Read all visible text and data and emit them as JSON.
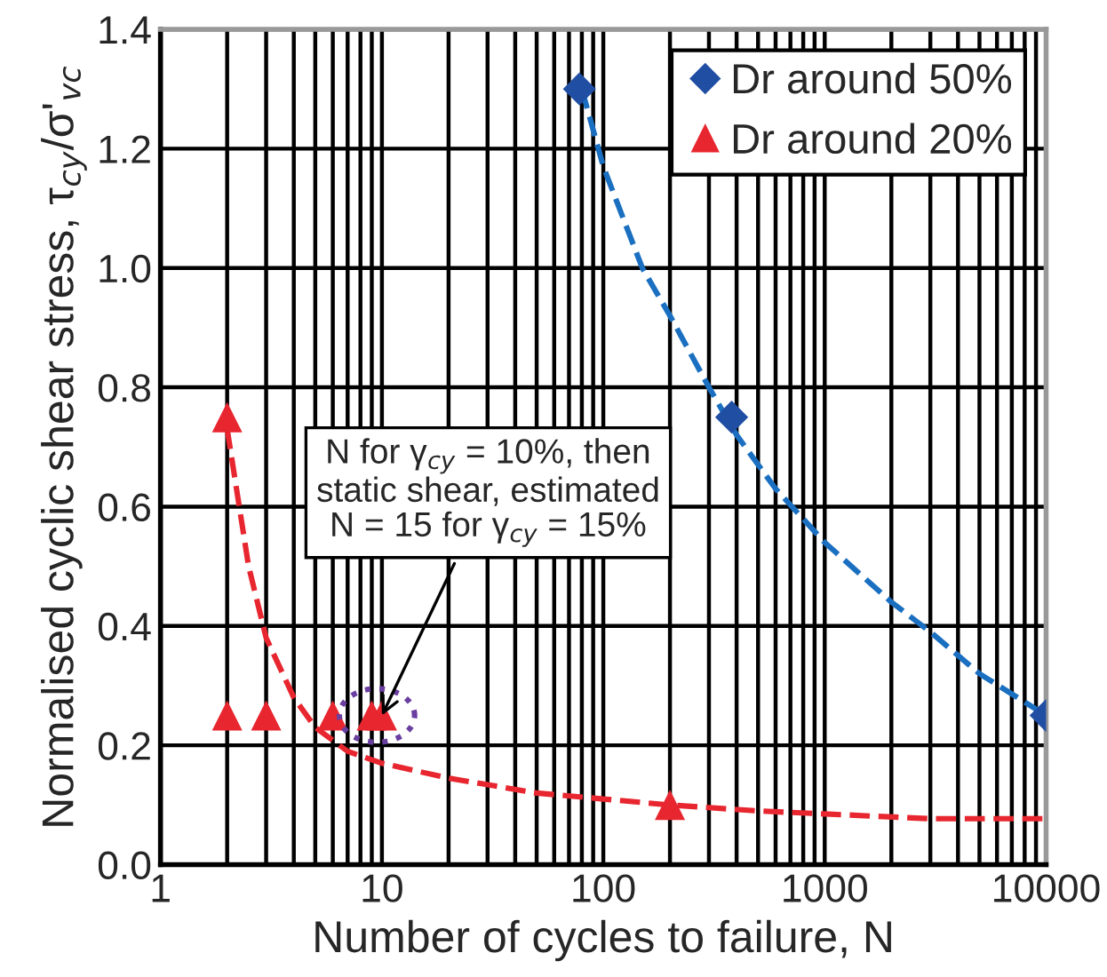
{
  "chart_data": {
    "type": "scatter",
    "xlabel": "Number of cycles to failure, N",
    "ylabel": "Normalised cyclic shear stress, τ$_{cy}$/σ'$_{vc}$",
    "log": "x",
    "xlim": [
      1,
      10000
    ],
    "xticks": [
      1,
      10,
      100,
      1000,
      10000
    ],
    "ylim": [
      0,
      1.4
    ],
    "yticks": [
      {
        "value": 0,
        "label": "0.0"
      },
      {
        "value": 0.2,
        "label": "0.2"
      },
      {
        "value": 0.4,
        "label": "0.4"
      },
      {
        "value": 0.6,
        "label": "0.6"
      },
      {
        "value": 0.8,
        "label": "0.8"
      },
      {
        "value": 1.0,
        "label": "1.0"
      },
      {
        "value": 1.2,
        "label": "1.2"
      },
      {
        "value": 1.4,
        "label": "1.4"
      }
    ],
    "grid": true,
    "legend": "top right",
    "series": [
      {
        "type": "line",
        "color": "#1a6fc0",
        "line_style": "dashed",
        "marker": "none",
        "x": [
          80,
          100,
          150,
          200,
          300,
          400,
          600,
          1000,
          2000,
          3000,
          5000,
          10000
        ],
        "values": [
          1.3,
          1.17,
          1.0,
          0.92,
          0.8,
          0.72,
          0.63,
          0.54,
          0.44,
          0.39,
          0.32,
          0.25
        ]
      },
      {
        "type": "line",
        "color": "#e8262f",
        "line_style": "dashed",
        "marker": "none",
        "x": [
          2,
          2.5,
          3,
          4,
          5,
          7,
          10,
          20,
          50,
          100,
          200,
          500,
          1000,
          3000,
          10000
        ],
        "values": [
          0.73,
          0.5,
          0.38,
          0.28,
          0.23,
          0.19,
          0.17,
          0.145,
          0.12,
          0.11,
          0.1,
          0.09,
          0.085,
          0.077,
          0.077
        ]
      },
      {
        "type": "scatter",
        "name": "Dr around 50%",
        "color": "#1f4ea3",
        "marker": "diamond",
        "x": [
          78,
          380,
          10000
        ],
        "values": [
          1.3,
          0.75,
          0.25
        ]
      },
      {
        "type": "scatter",
        "name": "Dr around 20%",
        "color": "#e8262f",
        "marker": "triangle",
        "x": [
          2,
          2,
          3,
          6,
          9,
          10,
          200
        ],
        "values": [
          0.75,
          0.25,
          0.25,
          0.25,
          0.25,
          0.25,
          0.1
        ]
      }
    ],
    "annotations": [
      {
        "text": "N for γ$_{cy}$ = 10%, then\nstatic shear, estimated\nN = 15 for γ$_{cy}$ = 15%",
        "x": 10,
        "y": 0.25
      }
    ]
  }
}
